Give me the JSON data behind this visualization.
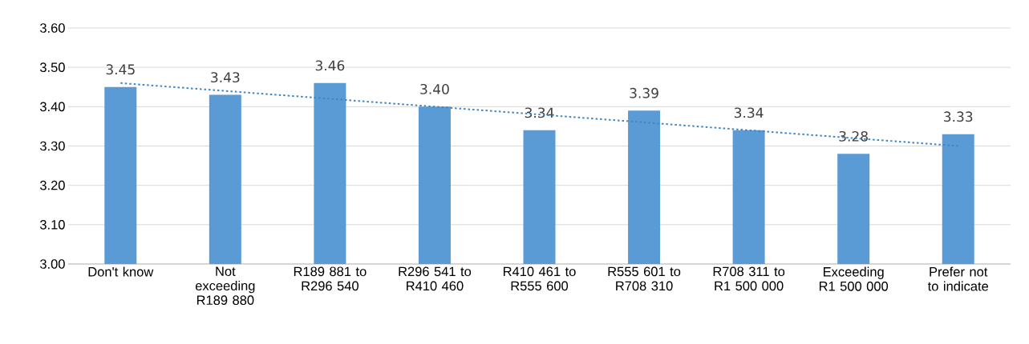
{
  "chart_data": {
    "type": "bar",
    "categories": [
      "Don't know",
      "Not exceeding R189 880",
      "R189 881 to R296 540",
      "R296 541 to R410 460",
      "R410 461 to R555 600",
      "R555 601 to R708 310",
      "R708 311 to R1 500 000",
      "Exceeding R1 500 000",
      "Prefer not to indicate"
    ],
    "series": [
      {
        "color": "#5b9bd5",
        "values": [
          3.45,
          3.43,
          3.46,
          3.4,
          3.34,
          3.39,
          3.34,
          3.28,
          3.33
        ],
        "value_labels": [
          "3.45",
          "3.43",
          "3.46",
          "3.40",
          "3.34",
          "3.39",
          "3.34",
          "3.28",
          "3.33"
        ]
      },
      {
        "type": "line",
        "color": "#3f86c9",
        "line_style": "dotted",
        "values": [
          3.46,
          3.44,
          3.42,
          3.4,
          3.38,
          3.36,
          3.34,
          3.32,
          3.3
        ]
      }
    ],
    "ylim": [
      3.0,
      3.6
    ],
    "yticks": [
      {
        "value": 3.0,
        "label": "3.00"
      },
      {
        "value": 3.1,
        "label": "3.10"
      },
      {
        "value": 3.2,
        "label": "3.20"
      },
      {
        "value": 3.3,
        "label": "3.30"
      },
      {
        "value": 3.4,
        "label": "3.40"
      },
      {
        "value": 3.5,
        "label": "3.50"
      },
      {
        "value": 3.6,
        "label": "3.60"
      }
    ],
    "grid": "y"
  }
}
